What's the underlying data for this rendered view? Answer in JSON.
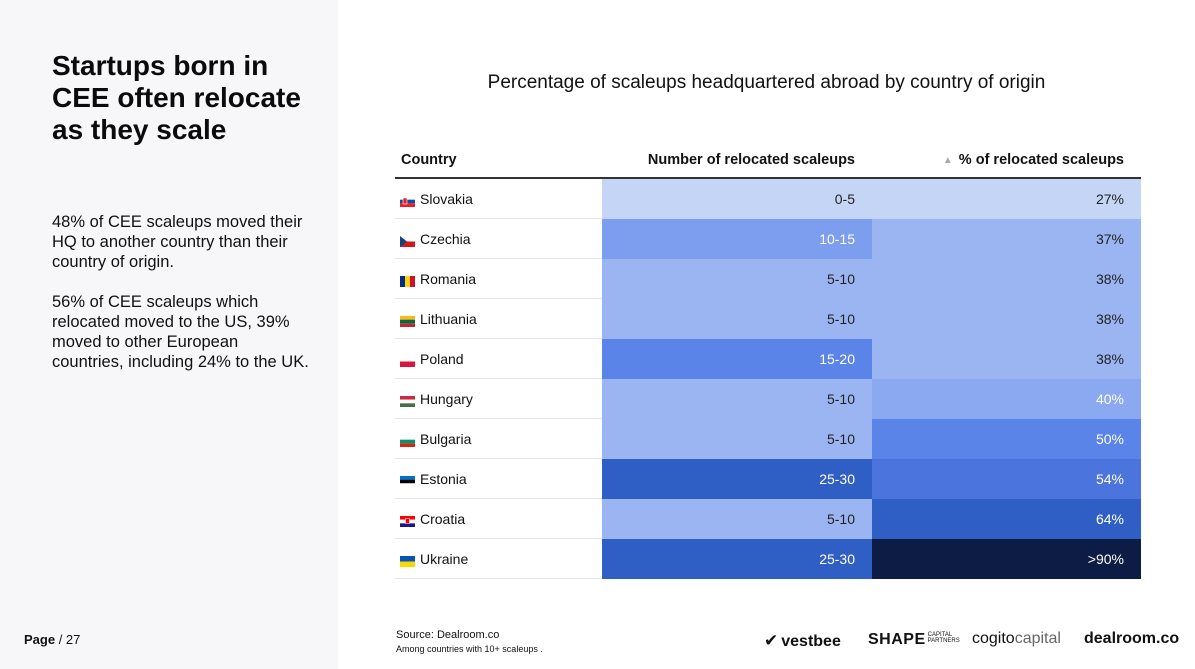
{
  "sidebar": {
    "headline": "Startups born in CEE often relocate as they scale",
    "paragraph1": "48% of CEE scaleups moved their HQ to another country than their country of origin.",
    "paragraph2": "56% of CEE scaleups which relocated moved to the US, 39% moved to other European countries, including 24% to the UK.",
    "page_label": "Page",
    "page_number": "/ 27"
  },
  "chart_data": {
    "type": "table",
    "title": "Percentage of scaleups headquartered abroad by country of origin",
    "columns": [
      "Country",
      "Number of relocated scaleups",
      "% of relocated scaleups"
    ],
    "sort_indicator": "▲",
    "rows": [
      {
        "country": "Slovakia",
        "flag": "slovakia-flag-icon",
        "number": "0-5",
        "pct": "27%",
        "pct_value": 27,
        "num_color": "#c5d5f5",
        "pct_color": "#c5d5f5",
        "num_text_color": "#222",
        "pct_text_color": "#222"
      },
      {
        "country": "Czechia",
        "flag": "czechia-flag-icon",
        "number": "10-15",
        "pct": "37%",
        "pct_value": 37,
        "num_color": "#7d9def",
        "pct_color": "#9bb5f2",
        "num_text_color": "#ffffff",
        "pct_text_color": "#222"
      },
      {
        "country": "Romania",
        "flag": "romania-flag-icon",
        "number": "5-10",
        "pct": "38%",
        "pct_value": 38,
        "num_color": "#9bb5f2",
        "pct_color": "#9bb5f2",
        "num_text_color": "#222",
        "pct_text_color": "#222"
      },
      {
        "country": "Lithuania",
        "flag": "lithuania-flag-icon",
        "number": "5-10",
        "pct": "38%",
        "pct_value": 38,
        "num_color": "#9bb5f2",
        "pct_color": "#9bb5f2",
        "num_text_color": "#222",
        "pct_text_color": "#222"
      },
      {
        "country": "Poland",
        "flag": "poland-flag-icon",
        "number": "15-20",
        "pct": "38%",
        "pct_value": 38,
        "num_color": "#5b84e8",
        "pct_color": "#9bb5f2",
        "num_text_color": "#ffffff",
        "pct_text_color": "#222"
      },
      {
        "country": "Hungary",
        "flag": "hungary-flag-icon",
        "number": "5-10",
        "pct": "40%",
        "pct_value": 40,
        "num_color": "#9bb5f2",
        "pct_color": "#8aa9f0",
        "num_text_color": "#222",
        "pct_text_color": "#ffffff"
      },
      {
        "country": "Bulgaria",
        "flag": "bulgaria-flag-icon",
        "number": "5-10",
        "pct": "50%",
        "pct_value": 50,
        "num_color": "#9bb5f2",
        "pct_color": "#5b84e8",
        "num_text_color": "#222",
        "pct_text_color": "#ffffff"
      },
      {
        "country": "Estonia",
        "flag": "estonia-flag-icon",
        "number": "25-30",
        "pct": "54%",
        "pct_value": 54,
        "num_color": "#2f5fc4",
        "pct_color": "#4b74dc",
        "num_text_color": "#ffffff",
        "pct_text_color": "#ffffff"
      },
      {
        "country": "Croatia",
        "flag": "croatia-flag-icon",
        "number": "5-10",
        "pct": "64%",
        "pct_value": 64,
        "num_color": "#9bb5f2",
        "pct_color": "#2f5fc4",
        "num_text_color": "#222",
        "pct_text_color": "#ffffff"
      },
      {
        "country": "Ukraine",
        "flag": "ukraine-flag-icon",
        "number": "25-30",
        "pct": ">90%",
        "pct_value": 90,
        "num_color": "#2f5fc4",
        "pct_color": "#0c1c45",
        "num_text_color": "#ffffff",
        "pct_text_color": "#ffffff"
      }
    ]
  },
  "source": {
    "label": "Source:  Dealroom.co",
    "note": "Among countries with 10+ scaleups ."
  },
  "logos": {
    "vestbee": "vestbee",
    "shape": "SHAPE",
    "shape_sub1": "CAPITAL",
    "shape_sub2": "PARTNERS",
    "cogito_a": "cogito",
    "cogito_b": "capital",
    "dealroom": "dealroom.co"
  }
}
